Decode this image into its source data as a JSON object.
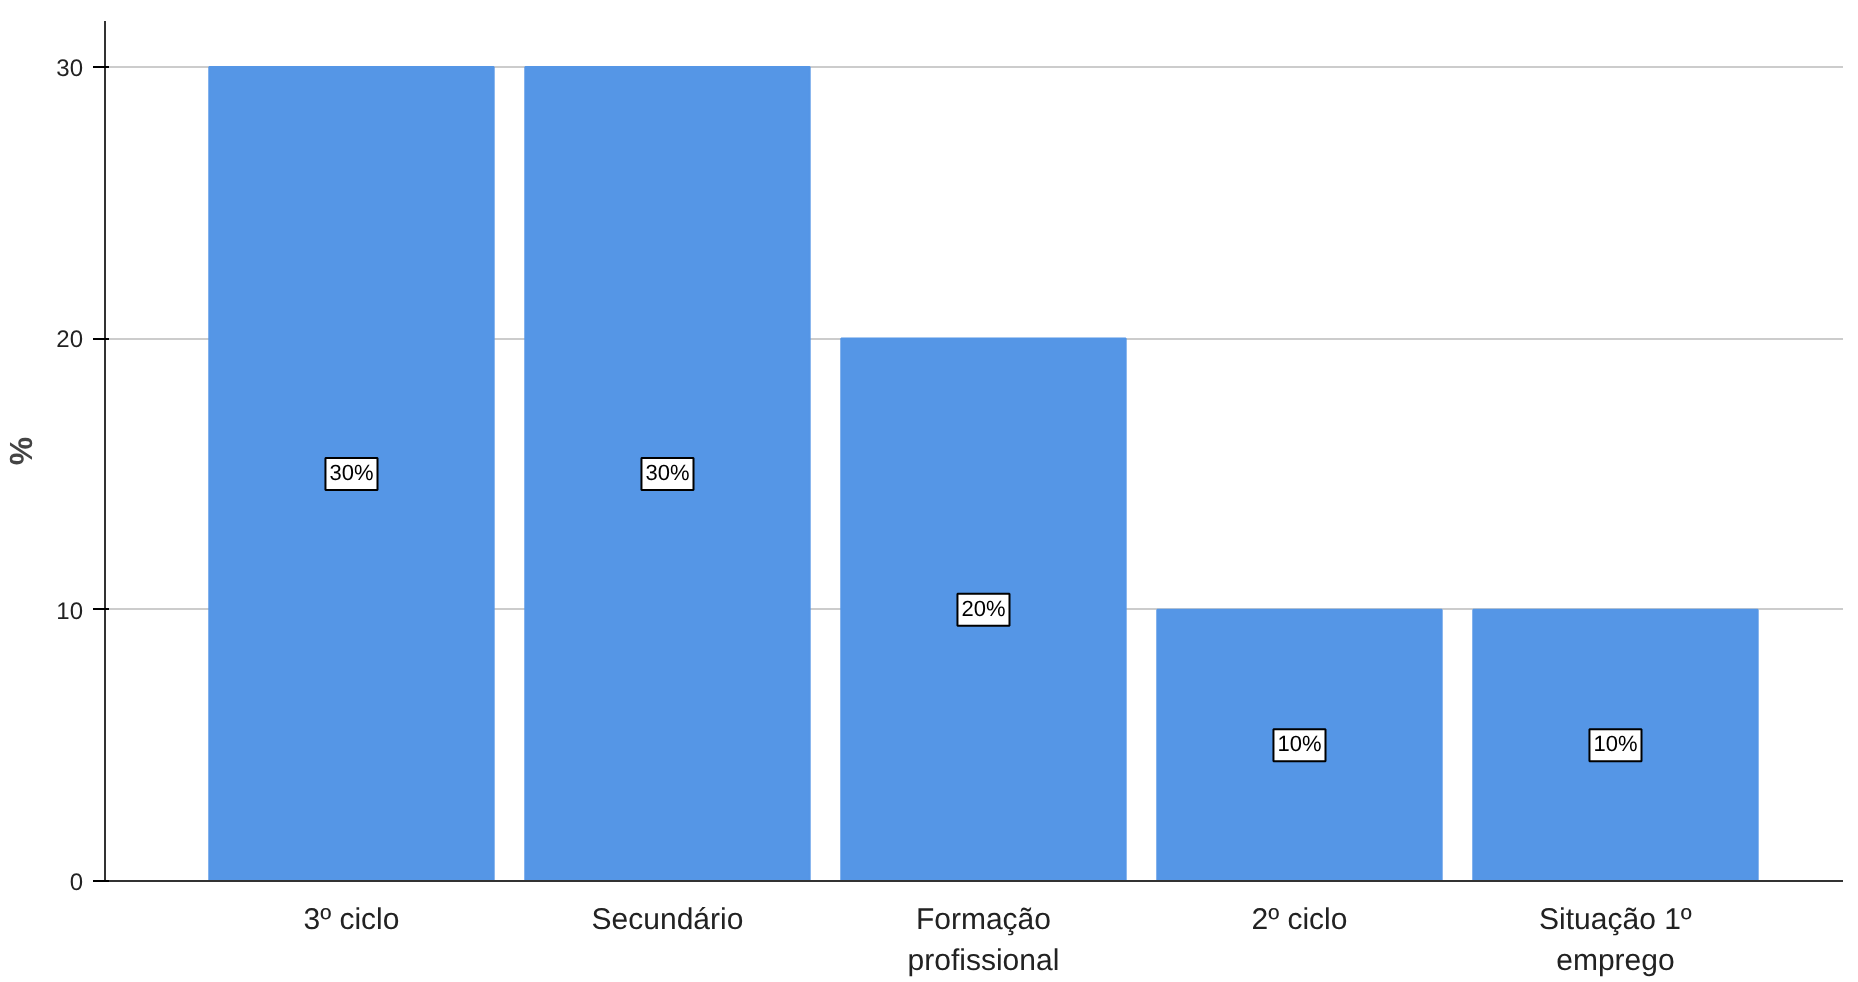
{
  "chart_data": {
    "type": "bar",
    "ylabel": "%",
    "categories": [
      "3º ciclo",
      "Secundário",
      "Formação profissional",
      "2º ciclo",
      "Situação 1º emprego"
    ],
    "values": [
      30,
      30,
      20,
      10,
      10
    ],
    "value_labels": [
      "30%",
      "30%",
      "20%",
      "10%",
      "10%"
    ],
    "color": "#5596e6",
    "ylim": [
      0,
      31.7
    ],
    "yticks": [
      0,
      10,
      20,
      30
    ],
    "grid": "y"
  }
}
